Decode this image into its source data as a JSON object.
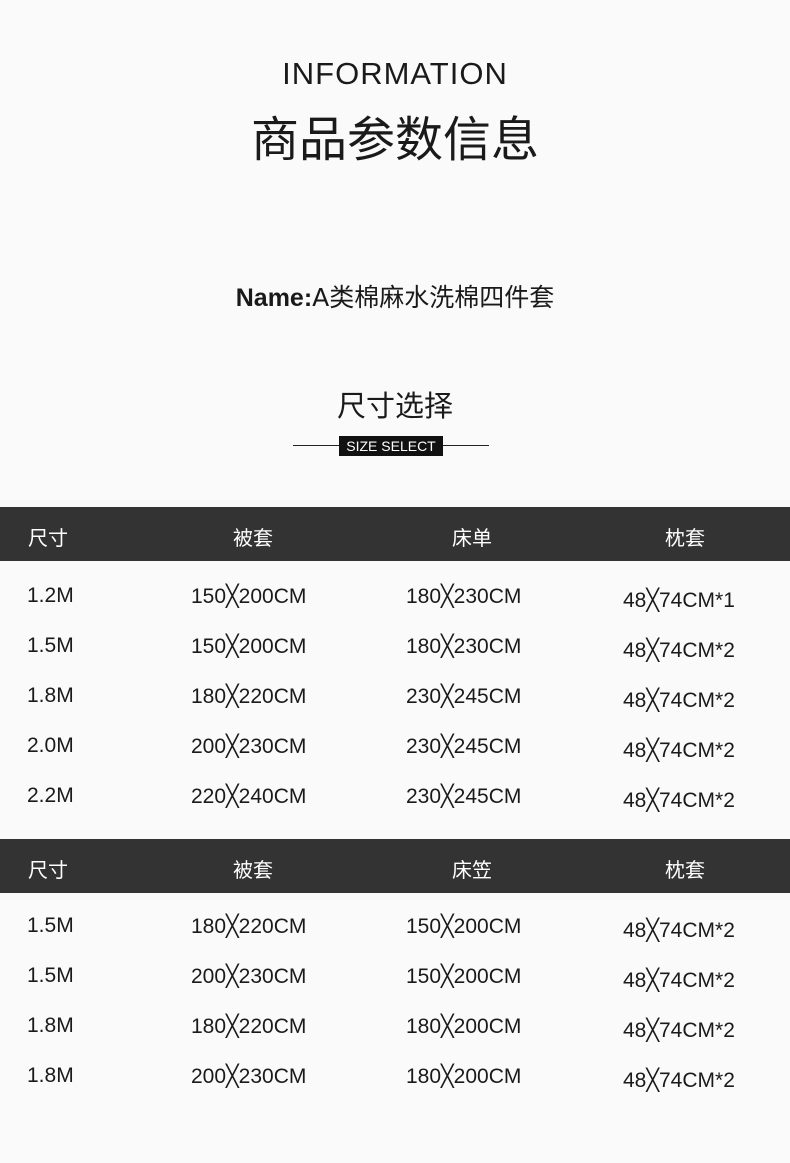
{
  "heading": {
    "en": "INFORMATION",
    "cn": "商品参数信息"
  },
  "name": {
    "label": "Name:",
    "value": "A类棉麻水洗棉四件套"
  },
  "size_section": {
    "title": "尺寸选择",
    "badge": "SIZE SELECT"
  },
  "tables": [
    {
      "headers": [
        "尺寸",
        "被套",
        "床单",
        "枕套"
      ],
      "rows": [
        [
          "1.2M",
          "150╳200CM",
          "180╳230CM",
          "48╳74CM*1"
        ],
        [
          "1.5M",
          "150╳200CM",
          "180╳230CM",
          "48╳74CM*2"
        ],
        [
          "1.8M",
          "180╳220CM",
          "230╳245CM",
          "48╳74CM*2"
        ],
        [
          "2.0M",
          "200╳230CM",
          "230╳245CM",
          "48╳74CM*2"
        ],
        [
          "2.2M",
          "220╳240CM",
          "230╳245CM",
          "48╳74CM*2"
        ]
      ]
    },
    {
      "headers": [
        "尺寸",
        "被套",
        "床笠",
        "枕套"
      ],
      "rows": [
        [
          "1.5M",
          "180╳220CM",
          "150╳200CM",
          "48╳74CM*2"
        ],
        [
          "1.5M",
          "200╳230CM",
          "150╳200CM",
          "48╳74CM*2"
        ],
        [
          "1.8M",
          "180╳220CM",
          "180╳200CM",
          "48╳74CM*2"
        ],
        [
          "1.8M",
          "200╳230CM",
          "180╳200CM",
          "48╳74CM*2"
        ]
      ]
    }
  ],
  "colors": {
    "header_bg": "#333333",
    "background": "#fafafa",
    "text": "#1a1a1a"
  }
}
